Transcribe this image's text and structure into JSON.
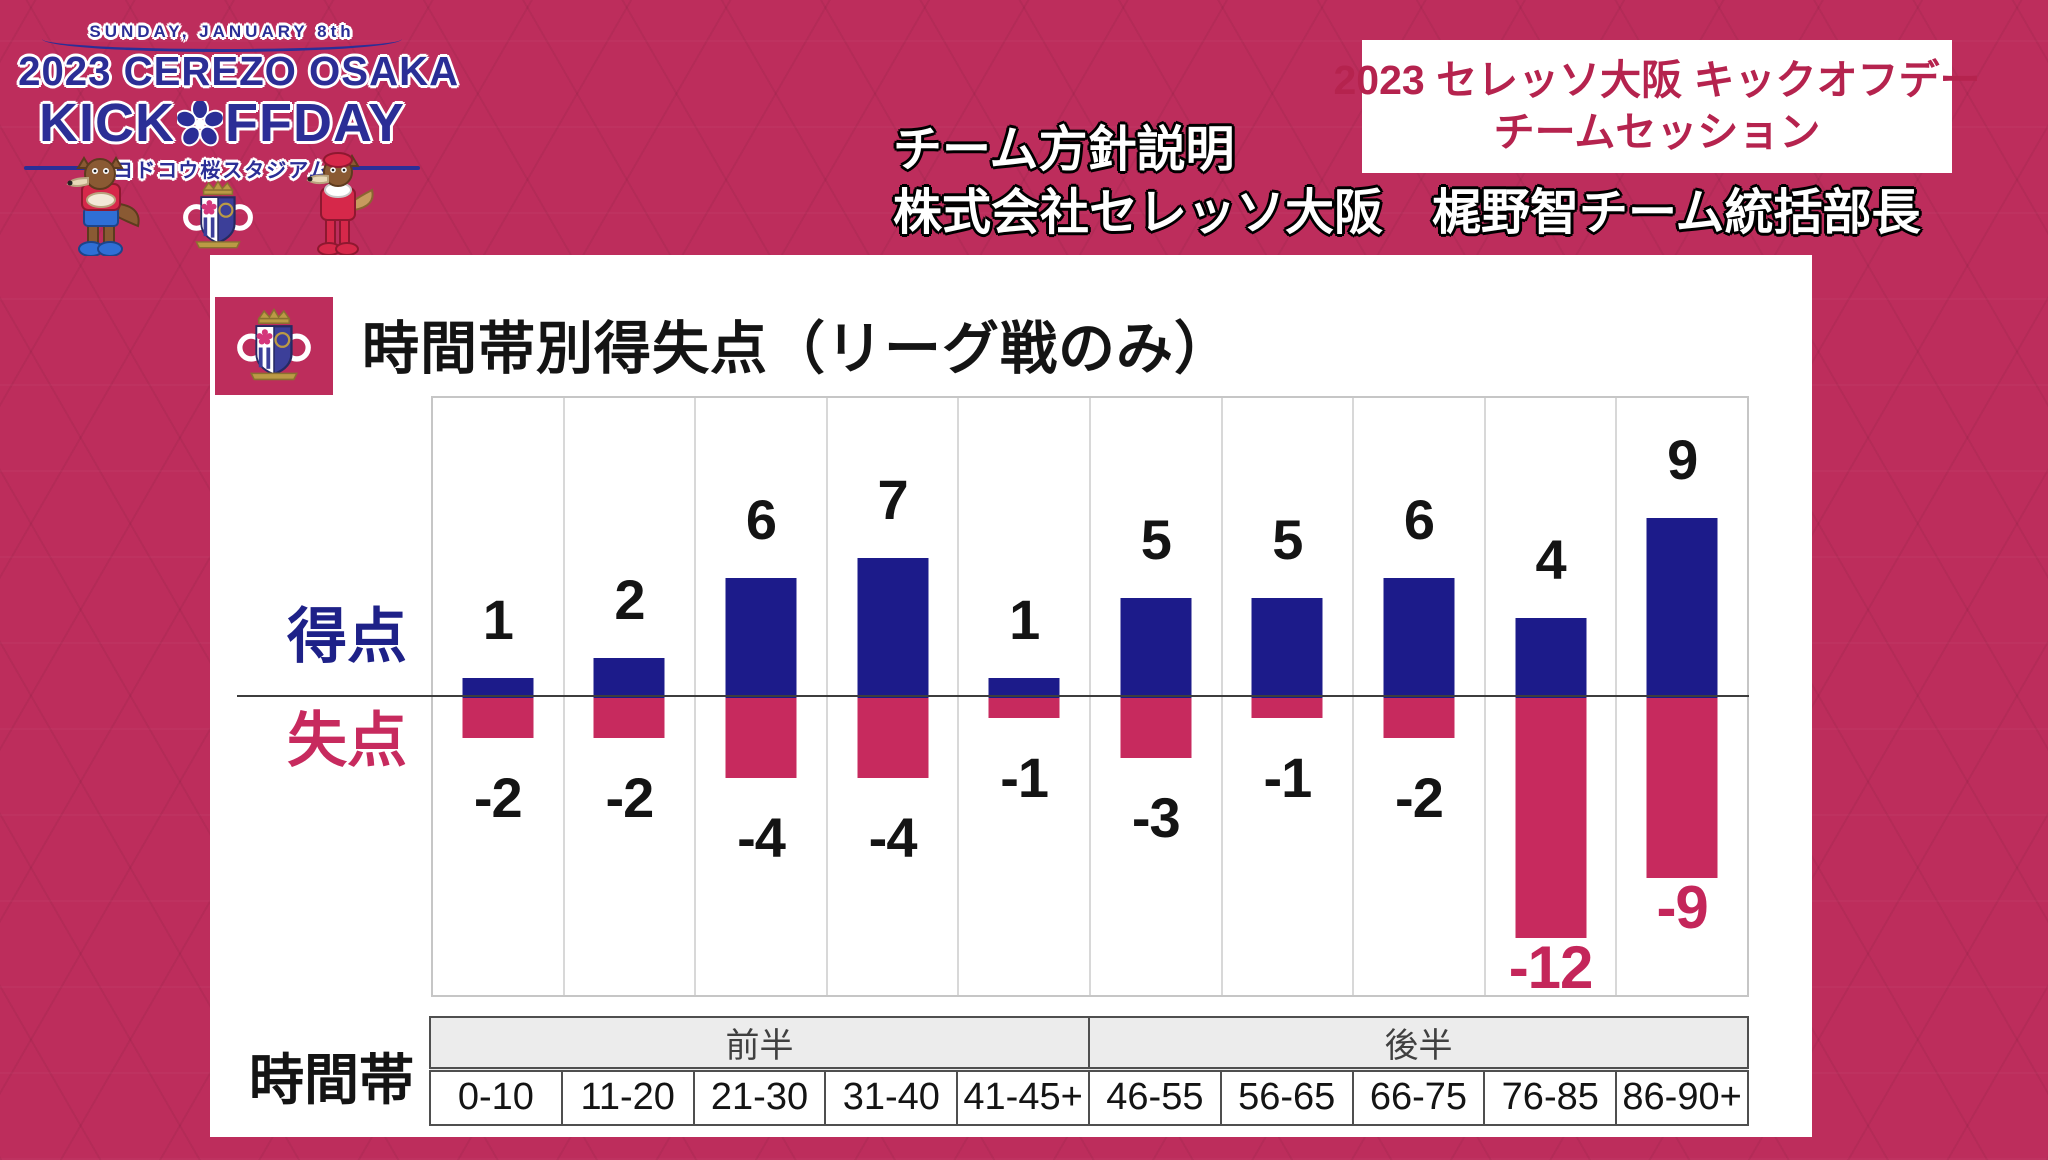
{
  "colors": {
    "background": "#bd2d5c",
    "scored_bar": "#1c1b8a",
    "conceded_bar": "#c72a5e",
    "logo_navy": "#2b2e96",
    "session_text": "#b5234e",
    "negative_big_label": "#c4265a"
  },
  "logo": {
    "date_line": "SUNDAY, JANUARY 8th",
    "title_line": "2023 CEREZO OSAKA",
    "kick_left": "KICK",
    "kick_right": "FFDAY",
    "stadium_line": "ヨドコウ桜スタジアム"
  },
  "session_box": {
    "line1": "2023 セレッソ大阪 キックオフデー",
    "line2": "チームセッション"
  },
  "presenter": {
    "line1": "チーム方針説明",
    "line2": "株式会社セレッソ大阪　梶野智チーム統括部長"
  },
  "card": {
    "title": "時間帯別得失点（リーグ戦のみ）",
    "legend_scored": "得点",
    "legend_conceded": "失点",
    "time_axis_label": "時間帯"
  },
  "table": {
    "first_half_label": "前半",
    "second_half_label": "後半"
  },
  "chart_data": {
    "type": "bar",
    "title": "時間帯別得失点（リーグ戦のみ）",
    "categories": [
      "0-10",
      "11-20",
      "21-30",
      "31-40",
      "41-45+",
      "46-55",
      "56-65",
      "66-75",
      "76-85",
      "86-90+"
    ],
    "series": [
      {
        "name": "得点",
        "values": [
          1,
          2,
          6,
          7,
          1,
          5,
          5,
          6,
          4,
          9
        ],
        "color": "#1c1b8a"
      },
      {
        "name": "失点",
        "values": [
          -2,
          -2,
          -4,
          -4,
          -1,
          -3,
          -1,
          -2,
          -12,
          -9
        ],
        "color": "#c72a5e"
      }
    ],
    "ylim": [
      -15,
      15
    ],
    "zero_line": true,
    "grid": "vertical-column-dividers",
    "value_labels": "on",
    "group_spans": [
      {
        "label": "前半",
        "columns": 5
      },
      {
        "label": "後半",
        "columns": 5
      }
    ],
    "legend_position": "left"
  }
}
